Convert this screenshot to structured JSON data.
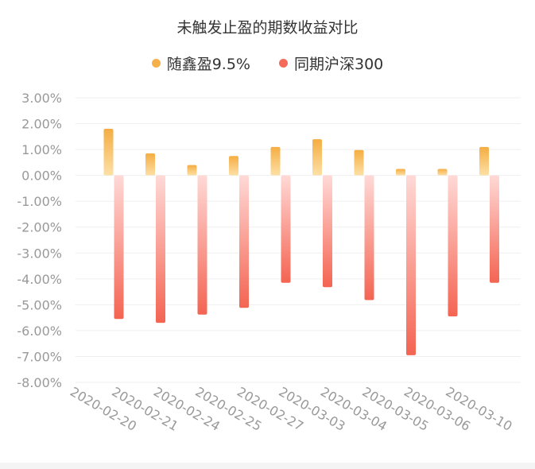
{
  "chart_data": {
    "type": "bar",
    "title": "未触发止盈的期数收益对比",
    "categories": [
      "2020-02-20",
      "2020-02-21",
      "2020-02-24",
      "2020-02-25",
      "2020-02-27",
      "2020-03-03",
      "2020-03-04",
      "2020-03-05",
      "2020-03-06",
      "2020-03-10"
    ],
    "series": [
      {
        "name": "随鑫盈9.5%",
        "values": [
          1.8,
          0.85,
          0.4,
          0.75,
          1.1,
          1.4,
          0.98,
          0.25,
          0.25,
          1.1
        ],
        "color": "#f5b04a"
      },
      {
        "name": "同期沪深300",
        "values": [
          -5.55,
          -5.7,
          -5.38,
          -5.12,
          -4.15,
          -4.32,
          -4.82,
          -6.95,
          -5.45,
          -4.15
        ],
        "color": "#f46a5a"
      }
    ],
    "ylim": [
      -8,
      3
    ],
    "yticks": [
      "3.00%",
      "2.00%",
      "1.00%",
      "0.00%",
      "-1.00%",
      "-2.00%",
      "-3.00%",
      "-4.00%",
      "-5.00%",
      "-6.00%",
      "-7.00%",
      "-8.00%"
    ],
    "grid": true,
    "legend_position": "top-center"
  }
}
